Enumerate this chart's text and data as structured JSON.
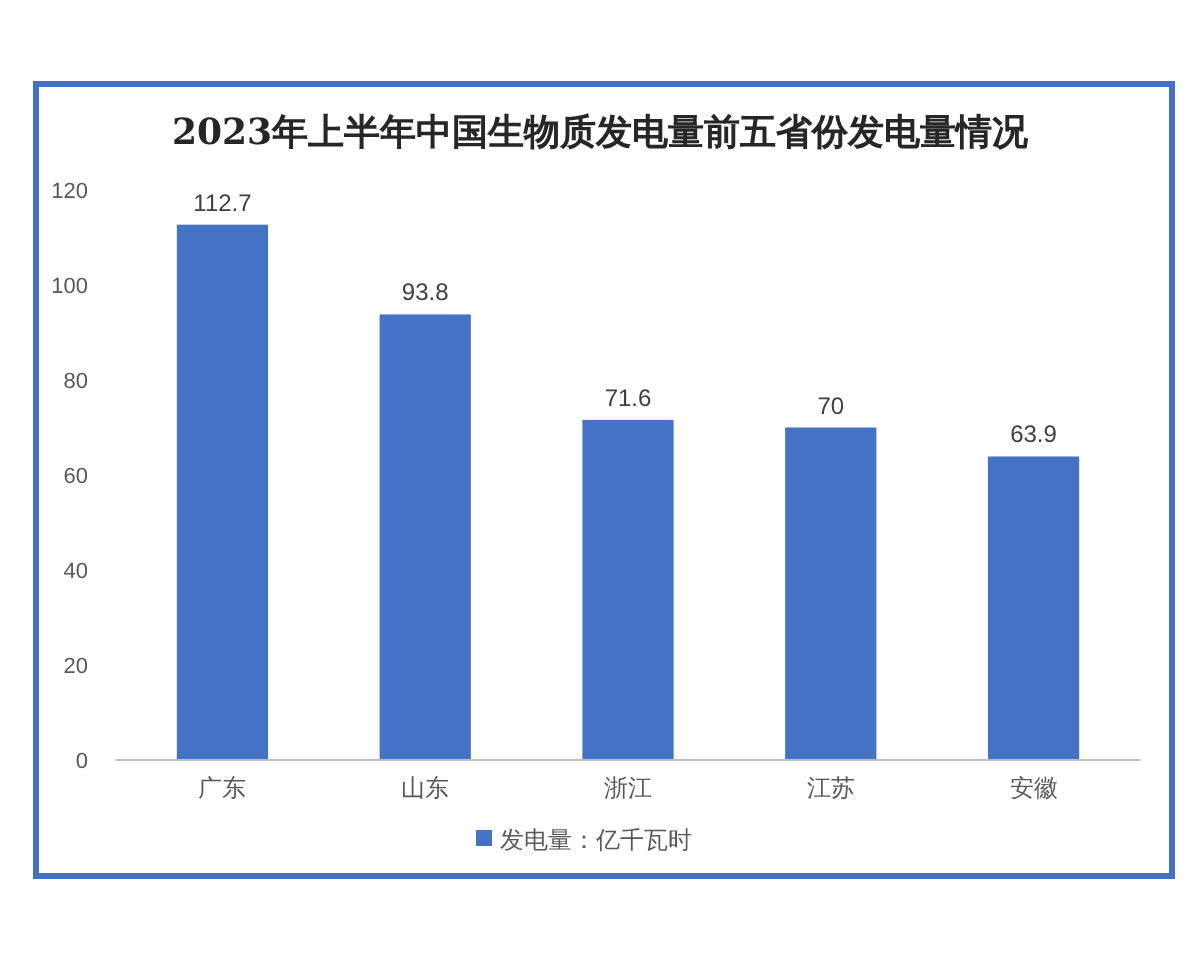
{
  "chart_data": {
    "type": "bar",
    "title": "2023年上半年中国生物质发电量前五省份发电量情况",
    "categories": [
      "广东",
      "山东",
      "浙江",
      "江苏",
      "安徽"
    ],
    "series": [
      {
        "name": "发电量：亿千瓦时",
        "color": "#4472c4",
        "values": [
          112.7,
          93.8,
          71.6,
          70,
          63.9
        ]
      }
    ],
    "ylim": [
      0,
      120
    ],
    "yticks": [
      0,
      20,
      40,
      60,
      80,
      100,
      120
    ],
    "data_labels": true,
    "legend": "bottom"
  }
}
